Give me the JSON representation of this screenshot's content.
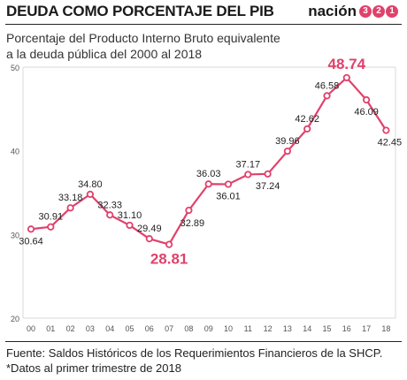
{
  "header": {
    "title": "DEUDA COMO PORCENTAJE DEL PIB",
    "brand_word": "nación",
    "brand_digits": [
      "3",
      "2",
      "1"
    ],
    "brand_color": "#e0416b"
  },
  "subtitle_lines": [
    "Porcentaje del Producto Interno Bruto equivalente",
    "a la deuda pública del 2000 al 2018"
  ],
  "chart_data": {
    "type": "line",
    "categories": [
      "00",
      "01",
      "02",
      "03",
      "04",
      "05",
      "06",
      "07",
      "08",
      "09",
      "10",
      "11",
      "12",
      "13",
      "14",
      "15",
      "16",
      "17",
      "18"
    ],
    "values": [
      30.64,
      30.91,
      33.18,
      34.8,
      32.33,
      31.1,
      29.49,
      28.81,
      32.89,
      36.03,
      36.01,
      37.17,
      37.24,
      39.96,
      42.62,
      46.58,
      48.74,
      46.09,
      42.45
    ],
    "value_labels": [
      "30.64",
      "30.91",
      "33.18",
      "34.80",
      "32.33",
      "31.10",
      "29.49",
      "28.81",
      "32.89",
      "36.03",
      "36.01",
      "37.17",
      "37.24",
      "39.96",
      "42.62",
      "46.58",
      "48.74",
      "46.09",
      "42.45"
    ],
    "highlighted": [
      "28.81",
      "48.74"
    ],
    "ylim": [
      20,
      50
    ],
    "yticks": [
      "20",
      "30",
      "40",
      "50"
    ],
    "grid": false,
    "line_color": "#e0416b",
    "highlight_color": "#e0416b"
  },
  "footer_lines": [
    "Fuente: Saldos Históricos de los Requerimientos Financieros de la SHCP.",
    "*Datos al primer trimestre de 2018"
  ]
}
